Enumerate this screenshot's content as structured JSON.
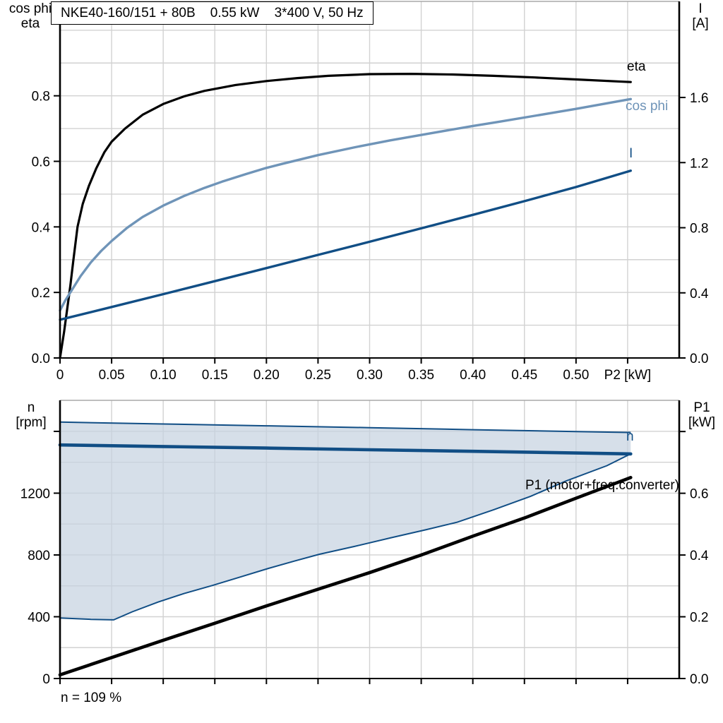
{
  "title_box": "NKE40-160/151 + 80B    0.55 kW    3*400 V, 50 Hz",
  "top_chart": {
    "left_axis_title": "cos phi\neta",
    "right_axis_title": "I\n[A]",
    "x_axis_title": "P2 [kW]",
    "curve_labels": {
      "eta": "eta",
      "cos_phi": "cos phi",
      "current": "I"
    }
  },
  "bottom_chart": {
    "left_axis_title": "n\n[rpm]",
    "right_axis_title": "P1\n[kW]",
    "curve_labels": {
      "speed": "n",
      "p1": "P1 (motor+freq.converter)"
    },
    "footnote": "n = 109 %"
  },
  "colors": {
    "eta": "#000000",
    "cos_phi": "#6f94b8",
    "current": "#114e85",
    "speed": "#114e85",
    "p1": "#000000",
    "envelope_fill": "#c4d2e0",
    "gridline": "#d2d2d2"
  },
  "chart_data": [
    {
      "type": "line",
      "title": "NKE40-160/151 + 80B  0.55 kW  3*400 V, 50 Hz",
      "xlabel": "P2 [kW]",
      "x_range": [
        0,
        0.6
      ],
      "x_gridstep": 0.05,
      "x_ticks": [
        {
          "v": 0,
          "label": "0"
        },
        {
          "v": 0.05,
          "label": "0.05"
        },
        {
          "v": 0.1,
          "label": "0.10"
        },
        {
          "v": 0.15,
          "label": "0.15"
        },
        {
          "v": 0.2,
          "label": "0.20"
        },
        {
          "v": 0.25,
          "label": "0.25"
        },
        {
          "v": 0.3,
          "label": "0.30"
        },
        {
          "v": 0.35,
          "label": "0.35"
        },
        {
          "v": 0.4,
          "label": "0.40"
        },
        {
          "v": 0.45,
          "label": "0.45"
        },
        {
          "v": 0.5,
          "label": "0.50"
        },
        {
          "v": 0.55,
          "label": "P2 [kW]"
        }
      ],
      "left_axis": {
        "title": "cos phi / eta",
        "range": [
          0,
          1.088
        ],
        "gridstep": 0.1,
        "ticks": [
          {
            "v": 0.0,
            "label": "0.0"
          },
          {
            "v": 0.2,
            "label": "0.2"
          },
          {
            "v": 0.4,
            "label": "0.4"
          },
          {
            "v": 0.6,
            "label": "0.6"
          },
          {
            "v": 0.8,
            "label": "0.8"
          }
        ]
      },
      "right_axis": {
        "title": "I [A]",
        "range": [
          0,
          2.19
        ],
        "ticks": [
          {
            "v": 0.0,
            "label": "0.0"
          },
          {
            "v": 0.4,
            "label": "0.4"
          },
          {
            "v": 0.8,
            "label": "0.8"
          },
          {
            "v": 1.2,
            "label": "1.2"
          },
          {
            "v": 1.6,
            "label": "1.6"
          }
        ]
      },
      "series": [
        {
          "name": "eta",
          "axis": "left",
          "color": "#000000",
          "width": 3.2,
          "points": [
            [
              0,
              0
            ],
            [
              0.004,
              0.08
            ],
            [
              0.007,
              0.15
            ],
            [
              0.01,
              0.22
            ],
            [
              0.013,
              0.3
            ],
            [
              0.017,
              0.4
            ],
            [
              0.022,
              0.47
            ],
            [
              0.028,
              0.525
            ],
            [
              0.035,
              0.578
            ],
            [
              0.043,
              0.628
            ],
            [
              0.05,
              0.66
            ],
            [
              0.063,
              0.7
            ],
            [
              0.08,
              0.742
            ],
            [
              0.1,
              0.775
            ],
            [
              0.12,
              0.798
            ],
            [
              0.14,
              0.815
            ],
            [
              0.17,
              0.833
            ],
            [
              0.2,
              0.845
            ],
            [
              0.23,
              0.854
            ],
            [
              0.26,
              0.861
            ],
            [
              0.3,
              0.866
            ],
            [
              0.34,
              0.867
            ],
            [
              0.38,
              0.865
            ],
            [
              0.42,
              0.861
            ],
            [
              0.46,
              0.856
            ],
            [
              0.5,
              0.85
            ],
            [
              0.553,
              0.842
            ]
          ]
        },
        {
          "name": "cos-phi",
          "axis": "left",
          "color": "#6f94b8",
          "width": 3.4,
          "points": [
            [
              0,
              0.145
            ],
            [
              0.005,
              0.175
            ],
            [
              0.01,
              0.2
            ],
            [
              0.02,
              0.25
            ],
            [
              0.03,
              0.292
            ],
            [
              0.04,
              0.327
            ],
            [
              0.05,
              0.357
            ],
            [
              0.065,
              0.397
            ],
            [
              0.08,
              0.43
            ],
            [
              0.1,
              0.465
            ],
            [
              0.12,
              0.494
            ],
            [
              0.14,
              0.519
            ],
            [
              0.157,
              0.538
            ],
            [
              0.18,
              0.561
            ],
            [
              0.2,
              0.58
            ],
            [
              0.215,
              0.592
            ],
            [
              0.25,
              0.619
            ],
            [
              0.286,
              0.643
            ],
            [
              0.32,
              0.664
            ],
            [
              0.36,
              0.686
            ],
            [
              0.4,
              0.708
            ],
            [
              0.424,
              0.72
            ],
            [
              0.46,
              0.739
            ],
            [
              0.5,
              0.76
            ],
            [
              0.553,
              0.79
            ]
          ]
        },
        {
          "name": "current",
          "axis": "right",
          "color": "#114e85",
          "width": 3.4,
          "points": [
            [
              0,
              0.235
            ],
            [
              0.05,
              0.313
            ],
            [
              0.1,
              0.392
            ],
            [
              0.15,
              0.472
            ],
            [
              0.2,
              0.552
            ],
            [
              0.25,
              0.633
            ],
            [
              0.3,
              0.714
            ],
            [
              0.35,
              0.796
            ],
            [
              0.4,
              0.879
            ],
            [
              0.45,
              0.963
            ],
            [
              0.5,
              1.05
            ],
            [
              0.553,
              1.15
            ]
          ]
        }
      ]
    },
    {
      "type": "line",
      "title": "Speed range and input power",
      "xlabel": "P2 [kW]",
      "x_range": [
        0,
        0.6
      ],
      "x_gridstep": 0.05,
      "x_ticks": [
        {
          "v": 0,
          "label": ""
        },
        {
          "v": 0.05,
          "label": ""
        },
        {
          "v": 0.1,
          "label": ""
        },
        {
          "v": 0.15,
          "label": ""
        },
        {
          "v": 0.2,
          "label": ""
        },
        {
          "v": 0.25,
          "label": ""
        },
        {
          "v": 0.3,
          "label": ""
        },
        {
          "v": 0.35,
          "label": ""
        },
        {
          "v": 0.4,
          "label": ""
        },
        {
          "v": 0.45,
          "label": ""
        },
        {
          "v": 0.5,
          "label": ""
        },
        {
          "v": 0.55,
          "label": ""
        }
      ],
      "left_axis": {
        "title": "n [rpm]",
        "range": [
          0,
          1801
        ],
        "gridstep": 200,
        "ticks": [
          {
            "v": 0,
            "label": "0"
          },
          {
            "v": 400,
            "label": "400"
          },
          {
            "v": 800,
            "label": "800"
          },
          {
            "v": 1200,
            "label": "1200"
          },
          {
            "v": 1600,
            "label": ""
          }
        ]
      },
      "right_axis": {
        "title": "P1 [kW]",
        "range": [
          0,
          0.901
        ],
        "ticks": [
          {
            "v": 0.0,
            "label": "0.0"
          },
          {
            "v": 0.2,
            "label": "0.2"
          },
          {
            "v": 0.4,
            "label": "0.4"
          },
          {
            "v": 0.6,
            "label": "0.6"
          },
          {
            "v": 0.8,
            "label": ""
          }
        ]
      },
      "series": [
        {
          "name": "speed-envelope",
          "type": "band",
          "axis": "left",
          "color": "#114e85",
          "width": 2,
          "fill": "#c4d2e0",
          "fill_opacity": 0.7,
          "upper": [
            [
              0,
              1660
            ],
            [
              0.1,
              1648
            ],
            [
              0.2,
              1636
            ],
            [
              0.3,
              1624
            ],
            [
              0.4,
              1611
            ],
            [
              0.5,
              1599
            ],
            [
              0.553,
              1593
            ]
          ],
          "lower": [
            [
              0,
              392
            ],
            [
              0.03,
              383
            ],
            [
              0.052,
              380
            ],
            [
              0.07,
              432
            ],
            [
              0.095,
              495
            ],
            [
              0.12,
              550
            ],
            [
              0.148,
              603
            ],
            [
              0.175,
              658
            ],
            [
              0.202,
              713
            ],
            [
              0.227,
              760
            ],
            [
              0.251,
              804
            ],
            [
              0.285,
              855
            ],
            [
              0.32,
              910
            ],
            [
              0.355,
              964
            ],
            [
              0.385,
              1012
            ],
            [
              0.42,
              1092
            ],
            [
              0.456,
              1180
            ],
            [
              0.49,
              1278
            ],
            [
              0.53,
              1378
            ],
            [
              0.553,
              1455
            ]
          ]
        },
        {
          "name": "speed",
          "axis": "left",
          "color": "#114e85",
          "width": 4.6,
          "points": [
            [
              0,
              1512
            ],
            [
              0.1,
              1502
            ],
            [
              0.2,
              1492
            ],
            [
              0.3,
              1481
            ],
            [
              0.4,
              1471
            ],
            [
              0.5,
              1460
            ],
            [
              0.553,
              1454
            ]
          ]
        },
        {
          "name": "p1-motor-freq-converter",
          "axis": "right",
          "color": "#000000",
          "width": 4.6,
          "points": [
            [
              0,
              0.012
            ],
            [
              0.05,
              0.068
            ],
            [
              0.1,
              0.124
            ],
            [
              0.15,
              0.179
            ],
            [
              0.2,
              0.235
            ],
            [
              0.25,
              0.289
            ],
            [
              0.3,
              0.343
            ],
            [
              0.35,
              0.4
            ],
            [
              0.4,
              0.461
            ],
            [
              0.45,
              0.52
            ],
            [
              0.5,
              0.584
            ],
            [
              0.553,
              0.651
            ]
          ]
        }
      ],
      "annotations": [
        "n = 109 %"
      ]
    }
  ]
}
